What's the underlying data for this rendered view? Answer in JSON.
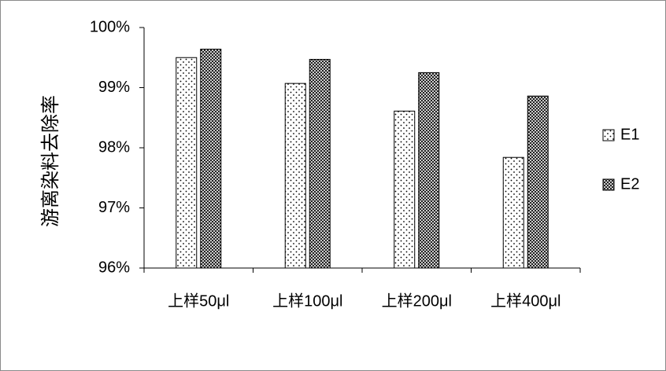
{
  "chart_data": {
    "type": "bar",
    "title": "",
    "xlabel": "",
    "ylabel": "游离染料去除率",
    "categories": [
      "上样50μl",
      "上样100μl",
      "上样200μl",
      "上样400μl"
    ],
    "series": [
      {
        "name": "E1",
        "values": [
          99.5,
          99.07,
          98.61,
          97.84
        ],
        "pattern": "dots"
      },
      {
        "name": "E2",
        "values": [
          99.64,
          99.47,
          99.25,
          98.86
        ],
        "pattern": "crosshatch"
      }
    ],
    "ylim": [
      96,
      100
    ],
    "yticks": [
      "96%",
      "97%",
      "98%",
      "99%",
      "100%"
    ],
    "grid": false,
    "legend": "right"
  }
}
